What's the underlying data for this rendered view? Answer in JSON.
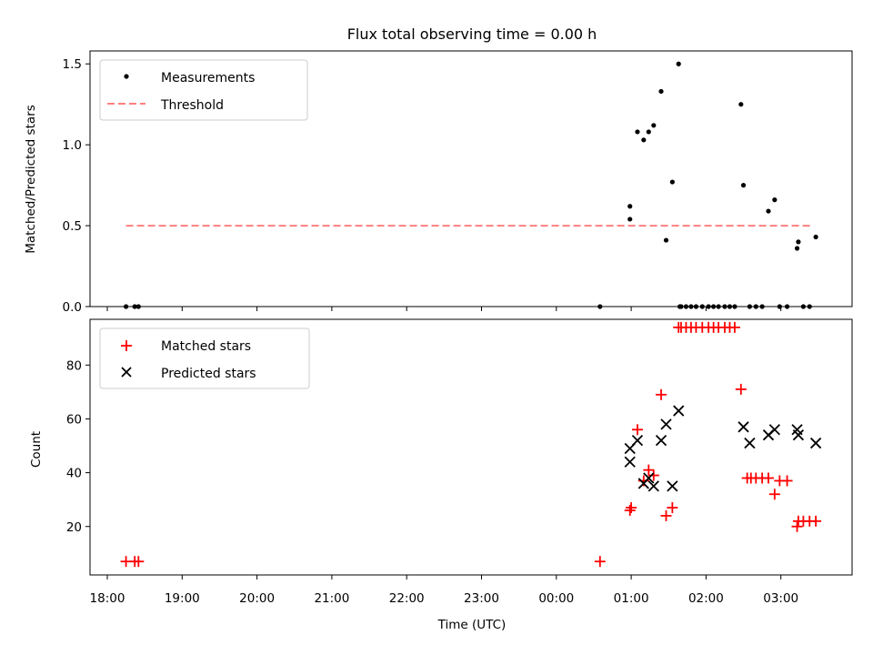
{
  "title": "Flux total observing time = 0.00 h",
  "chart_data": [
    {
      "type": "scatter",
      "panel": "top",
      "ylabel": "Matched/Predicted stars",
      "xlabel": "",
      "yticks": [
        "0.0",
        "0.5",
        "1.0",
        "1.5"
      ],
      "ytick_values": [
        0,
        0.5,
        1.0,
        1.5
      ],
      "ylim": [
        0,
        1.58
      ],
      "legend": [
        "Measurements",
        "Threshold"
      ],
      "legend_position": "top-left",
      "threshold": {
        "name": "Threshold",
        "value": 0.5,
        "x_range": [
          "18:15",
          "03:25"
        ],
        "color": "#ff7f7f"
      },
      "series": [
        {
          "name": "Measurements",
          "color": "#000000",
          "x": [
            "18:15",
            "18:22",
            "18:25",
            "00:35",
            "00:59",
            "00:59",
            "01:05",
            "01:10",
            "01:14",
            "01:18",
            "01:24",
            "01:28",
            "01:33",
            "01:38",
            "01:39",
            "01:40",
            "01:44",
            "01:48",
            "01:52",
            "01:57",
            "02:02",
            "02:06",
            "02:10",
            "02:15",
            "02:19",
            "02:23",
            "02:28",
            "02:30",
            "02:35",
            "02:40",
            "02:45",
            "02:50",
            "02:55",
            "02:59",
            "03:05",
            "03:13",
            "03:14",
            "03:18",
            "03:23",
            "03:28"
          ],
          "y": [
            0,
            0,
            0,
            0,
            0.62,
            0.54,
            1.08,
            1.03,
            1.08,
            1.12,
            1.33,
            0.41,
            0.77,
            1.5,
            0,
            0,
            0,
            0,
            0,
            0,
            0,
            0,
            0,
            0,
            0,
            0,
            1.25,
            0.75,
            0,
            0,
            0,
            0.59,
            0.66,
            0,
            0,
            0.36,
            0.4,
            0,
            0,
            0.43
          ]
        }
      ]
    },
    {
      "type": "scatter",
      "panel": "bottom",
      "ylabel": "Count",
      "xlabel": "Time (UTC)",
      "xticks": [
        "18:00",
        "19:00",
        "20:00",
        "21:00",
        "22:00",
        "23:00",
        "00:00",
        "01:00",
        "02:00",
        "03:00"
      ],
      "yticks": [
        "20",
        "40",
        "60",
        "80"
      ],
      "ytick_values": [
        20,
        40,
        60,
        80
      ],
      "ylim": [
        2,
        97
      ],
      "legend": [
        "Matched stars",
        "Predicted stars"
      ],
      "legend_position": "top-left",
      "series": [
        {
          "name": "Matched stars",
          "color": "#ff0000",
          "x": [
            "18:15",
            "18:22",
            "18:25",
            "00:35",
            "00:59",
            "01:00",
            "01:05",
            "01:10",
            "01:14",
            "01:18",
            "01:24",
            "01:28",
            "01:33",
            "01:38",
            "01:40",
            "01:44",
            "01:48",
            "01:52",
            "01:57",
            "02:02",
            "02:06",
            "02:10",
            "02:15",
            "02:19",
            "02:23",
            "02:28",
            "02:33",
            "02:36",
            "02:40",
            "02:45",
            "02:50",
            "02:55",
            "02:59",
            "03:05",
            "03:13",
            "03:14",
            "03:18",
            "03:23",
            "03:28"
          ],
          "y": [
            7,
            7,
            7,
            7,
            26,
            27,
            56,
            37,
            41,
            39,
            69,
            24,
            27,
            94,
            94,
            94,
            94,
            94,
            94,
            94,
            94,
            94,
            94,
            94,
            94,
            71,
            38,
            38,
            38,
            38,
            38,
            32,
            37,
            37,
            20,
            22,
            22,
            22,
            22
          ]
        },
        {
          "name": "Predicted stars",
          "color": "#000000",
          "x": [
            "00:59",
            "00:59",
            "01:05",
            "01:10",
            "01:14",
            "01:18",
            "01:24",
            "01:28",
            "01:33",
            "01:38",
            "02:30",
            "02:35",
            "02:50",
            "02:55",
            "03:13",
            "03:14",
            "03:28"
          ],
          "y": [
            44,
            49,
            52,
            36,
            38,
            35,
            52,
            58,
            35,
            63,
            57,
            51,
            54,
            56,
            56,
            54,
            51
          ]
        }
      ]
    }
  ]
}
